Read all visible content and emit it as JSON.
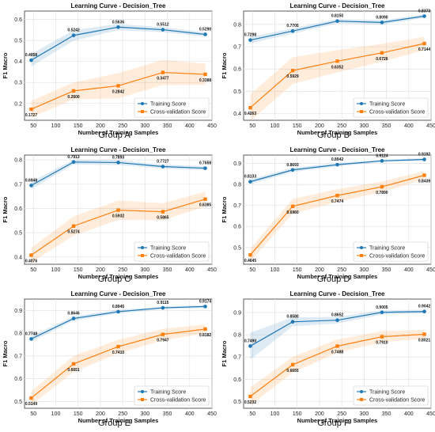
{
  "chart_data": [
    {
      "type": "line",
      "title": "Learning Curve - Decision_Tree",
      "xlabel": "Number of Training Samples",
      "ylabel": "F1 Macro",
      "caption": "Group A",
      "x": [
        45,
        140,
        240,
        340,
        435
      ],
      "xticks": [
        50,
        100,
        150,
        200,
        250,
        300,
        350,
        400,
        450
      ],
      "yticks": [
        0.2,
        0.3,
        0.4,
        0.5,
        0.6
      ],
      "ylim": [
        0.12,
        0.64
      ],
      "legend_position": "lower-right",
      "grid": true,
      "series": [
        {
          "name": "Training Score",
          "color": "#1f77b4",
          "marker": "circle",
          "values": [
            0.4058,
            0.5242,
            0.5636,
            0.5512,
            0.529
          ],
          "labels": [
            "0.4058",
            "0.5242",
            "0.5636",
            "0.5512",
            "0.5290"
          ],
          "band": [
            0.03,
            0.025,
            0.015,
            0.012,
            0.01
          ]
        },
        {
          "name": "Cross-validation Score",
          "color": "#ff7f0e",
          "marker": "square",
          "values": [
            0.1727,
            0.26,
            0.2842,
            0.3477,
            0.3388
          ],
          "labels": [
            "0.1727",
            "0.2600",
            "0.2842",
            "0.3477",
            "0.3388"
          ],
          "band": [
            0.04,
            0.04,
            0.06,
            0.06,
            0.05
          ]
        }
      ]
    },
    {
      "type": "line",
      "title": "Learning Curve - Decision_Tree",
      "xlabel": "Number of Training Samples",
      "ylabel": "F1 Macro",
      "caption": "Group B",
      "x": [
        45,
        140,
        240,
        340,
        435
      ],
      "xticks": [
        50,
        100,
        150,
        200,
        250,
        300,
        350,
        400,
        450
      ],
      "yticks": [
        0.4,
        0.5,
        0.6,
        0.7,
        0.8
      ],
      "ylim": [
        0.37,
        0.86
      ],
      "legend_position": "lower-right",
      "grid": true,
      "series": [
        {
          "name": "Training Score",
          "color": "#1f77b4",
          "marker": "circle",
          "values": [
            0.7298,
            0.7705,
            0.815,
            0.809,
            0.8373
          ],
          "labels": [
            "0.7298",
            "0.7705",
            "0.8150",
            "0.8090",
            "0.8373"
          ],
          "band": [
            0.015,
            0.012,
            0.01,
            0.01,
            0.008
          ]
        },
        {
          "name": "Cross-validation Score",
          "color": "#ff7f0e",
          "marker": "square",
          "values": [
            0.4263,
            0.5929,
            0.6352,
            0.6726,
            0.7144
          ],
          "labels": [
            "0.4263",
            "0.5929",
            "0.6352",
            "0.6726",
            "0.7144"
          ],
          "band": [
            0.06,
            0.06,
            0.05,
            0.04,
            0.03
          ]
        }
      ]
    },
    {
      "type": "line",
      "title": "Learning Curve - Decision_Tree",
      "xlabel": "Number of Training Samples",
      "ylabel": "F1 Macro",
      "caption": "Group C",
      "x": [
        45,
        140,
        240,
        340,
        435
      ],
      "xticks": [
        50,
        100,
        150,
        200,
        250,
        300,
        350,
        400,
        450
      ],
      "yticks": [
        0.4,
        0.5,
        0.6,
        0.7,
        0.8
      ],
      "ylim": [
        0.37,
        0.82
      ],
      "legend_position": "lower-right",
      "grid": true,
      "series": [
        {
          "name": "Training Score",
          "color": "#1f77b4",
          "marker": "circle",
          "values": [
            0.6948,
            0.7913,
            0.7893,
            0.7727,
            0.7658
          ],
          "labels": [
            "0.6948",
            "0.7913",
            "0.7893",
            "0.7727",
            "0.7658"
          ],
          "band": [
            0.015,
            0.01,
            0.01,
            0.008,
            0.008
          ]
        },
        {
          "name": "Cross-validation Score",
          "color": "#ff7f0e",
          "marker": "square",
          "values": [
            0.4076,
            0.5274,
            0.5932,
            0.5865,
            0.6385
          ],
          "labels": [
            "0.4076",
            "0.5274",
            "0.5932",
            "0.5865",
            "0.6385"
          ],
          "band": [
            0.03,
            0.04,
            0.04,
            0.035,
            0.03
          ]
        }
      ]
    },
    {
      "type": "line",
      "title": "Learning Curve - Decision_Tree",
      "xlabel": "Number of Training Samples",
      "ylabel": "F1 Macro",
      "caption": "Group D",
      "x": [
        45,
        140,
        240,
        340,
        435
      ],
      "xticks": [
        50,
        100,
        150,
        200,
        250,
        300,
        350,
        400,
        450
      ],
      "yticks": [
        0.5,
        0.6,
        0.7,
        0.8,
        0.9
      ],
      "ylim": [
        0.42,
        0.94
      ],
      "legend_position": "lower-right",
      "grid": true,
      "series": [
        {
          "name": "Training Score",
          "color": "#1f77b4",
          "marker": "circle",
          "values": [
            0.8133,
            0.8693,
            0.8942,
            0.9124,
            0.9192
          ],
          "labels": [
            "0.8133",
            "0.8693",
            "0.8942",
            "0.9124",
            "0.9192"
          ],
          "band": [
            0.012,
            0.01,
            0.008,
            0.006,
            0.006
          ]
        },
        {
          "name": "Cross-validation Score",
          "color": "#ff7f0e",
          "marker": "square",
          "values": [
            0.4645,
            0.696,
            0.7474,
            0.789,
            0.8439
          ],
          "labels": [
            "0.4645",
            "0.6960",
            "0.7474",
            "0.7890",
            "0.8439"
          ],
          "band": [
            0.03,
            0.035,
            0.03,
            0.025,
            0.02
          ]
        }
      ]
    },
    {
      "type": "line",
      "title": "Learning Curve - Decision_Tree",
      "xlabel": "Number of Training Samples",
      "ylabel": "F1 Macro",
      "caption": "Group E",
      "x": [
        45,
        140,
        240,
        340,
        435
      ],
      "xticks": [
        50,
        100,
        150,
        200,
        250,
        300,
        350,
        400,
        450
      ],
      "yticks": [
        0.5,
        0.6,
        0.7,
        0.8,
        0.9
      ],
      "ylim": [
        0.47,
        0.95
      ],
      "legend_position": "lower-right",
      "grid": true,
      "series": [
        {
          "name": "Training Score",
          "color": "#1f77b4",
          "marker": "circle",
          "values": [
            0.7748,
            0.8646,
            0.8945,
            0.9115,
            0.9174
          ],
          "labels": [
            "0.7748",
            "0.8646",
            "0.8945",
            "0.9115",
            "0.9174"
          ],
          "band": [
            0.012,
            0.01,
            0.008,
            0.006,
            0.006
          ]
        },
        {
          "name": "Cross-validation Score",
          "color": "#ff7f0e",
          "marker": "square",
          "values": [
            0.5149,
            0.6651,
            0.741,
            0.7947,
            0.8182
          ],
          "labels": [
            "0.5149",
            "0.6651",
            "0.7410",
            "0.7947",
            "0.8182"
          ],
          "band": [
            0.03,
            0.035,
            0.03,
            0.025,
            0.02
          ]
        }
      ]
    },
    {
      "type": "line",
      "title": "Learning Curve - Decision_Tree",
      "xlabel": "Number of Training Samples",
      "ylabel": "F1 Macro",
      "caption": "Group F",
      "x": [
        45,
        140,
        240,
        340,
        435
      ],
      "xticks": [
        50,
        100,
        150,
        200,
        250,
        300,
        350,
        400,
        450
      ],
      "yticks": [
        0.5,
        0.6,
        0.7,
        0.8,
        0.9
      ],
      "ylim": [
        0.47,
        0.96
      ],
      "legend_position": "lower-right",
      "grid": true,
      "series": [
        {
          "name": "Training Score",
          "color": "#1f77b4",
          "marker": "circle",
          "values": [
            0.749,
            0.858,
            0.8652,
            0.9005,
            0.9042
          ],
          "labels": [
            "0.7490",
            "0.8580",
            "0.8652",
            "0.9005",
            "0.9042"
          ],
          "band": [
            0.06,
            0.02,
            0.015,
            0.01,
            0.008
          ]
        },
        {
          "name": "Cross-validation Score",
          "color": "#ff7f0e",
          "marker": "square",
          "values": [
            0.5232,
            0.6655,
            0.7488,
            0.791,
            0.8021
          ],
          "labels": [
            "0.5232",
            "0.6655",
            "0.7488",
            "0.7910",
            "0.8021"
          ],
          "band": [
            0.04,
            0.035,
            0.03,
            0.025,
            0.02
          ]
        }
      ]
    }
  ]
}
